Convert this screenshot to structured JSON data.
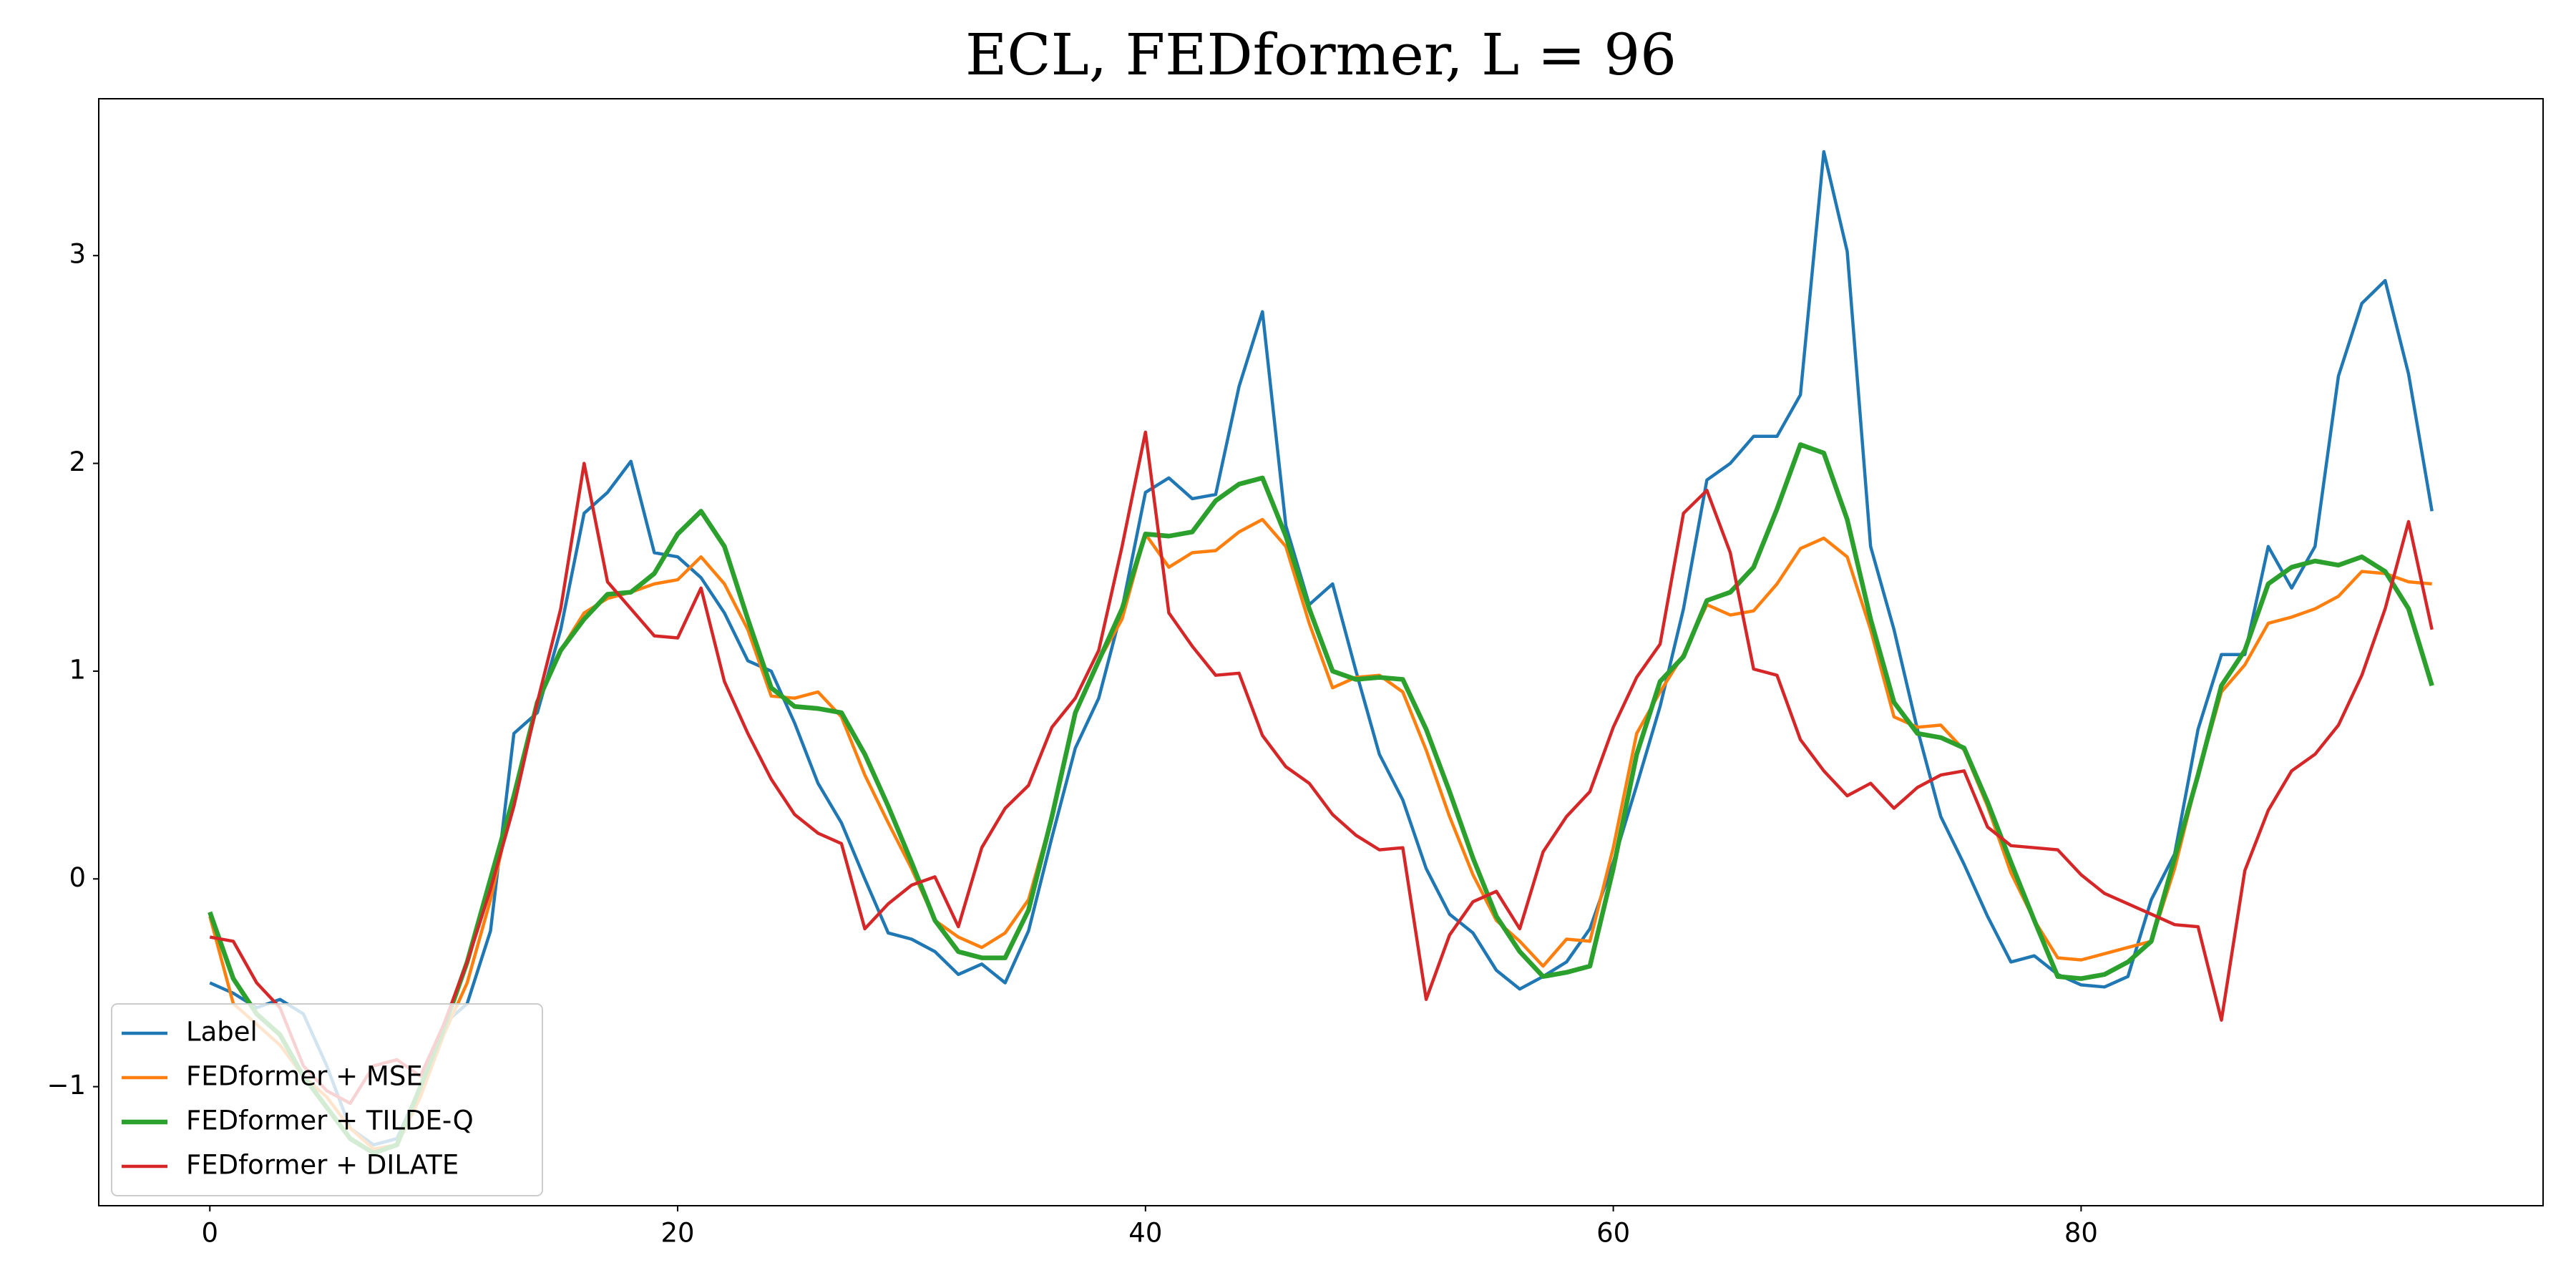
{
  "chart_data": {
    "type": "line",
    "title": "ECL, FEDformer, L = 96",
    "x": [
      0,
      1,
      2,
      3,
      4,
      5,
      6,
      7,
      8,
      9,
      10,
      11,
      12,
      13,
      14,
      15,
      16,
      17,
      18,
      19,
      20,
      21,
      22,
      23,
      24,
      25,
      26,
      27,
      28,
      29,
      30,
      31,
      32,
      33,
      34,
      35,
      36,
      37,
      38,
      39,
      40,
      41,
      42,
      43,
      44,
      45,
      46,
      47,
      48,
      49,
      50,
      51,
      52,
      53,
      54,
      55,
      56,
      57,
      58,
      59,
      60,
      61,
      62,
      63,
      64,
      65,
      66,
      67,
      68,
      69,
      70,
      71,
      72,
      73,
      74,
      75,
      76,
      77,
      78,
      79,
      80,
      81,
      82,
      83,
      84,
      85,
      86,
      87,
      88,
      89,
      90,
      91,
      92,
      93,
      94,
      95
    ],
    "xlim": [
      -4.75,
      99.75
    ],
    "xticks": [
      0,
      20,
      40,
      60,
      80
    ],
    "ylim": [
      -1.573,
      3.755
    ],
    "yticks": [
      {
        "value": -1,
        "label": "−1"
      },
      0,
      1,
      2,
      3
    ],
    "legend": "lower left",
    "series": [
      {
        "name": "Label",
        "color": "#1f77b4",
        "width": 1.5,
        "values": [
          -0.5,
          -0.55,
          -0.62,
          -0.58,
          -0.65,
          -0.9,
          -1.2,
          -1.28,
          -1.25,
          -1.0,
          -0.7,
          -0.6,
          -0.25,
          0.7,
          0.8,
          1.2,
          1.76,
          1.86,
          2.01,
          1.57,
          1.55,
          1.45,
          1.28,
          1.05,
          1.0,
          0.75,
          0.46,
          0.27,
          0.0,
          -0.26,
          -0.29,
          -0.35,
          -0.46,
          -0.41,
          -0.5,
          -0.25,
          0.2,
          0.63,
          0.87,
          1.3,
          1.86,
          1.93,
          1.83,
          1.85,
          2.37,
          2.73,
          1.7,
          1.32,
          1.42,
          1.0,
          0.6,
          0.38,
          0.05,
          -0.17,
          -0.26,
          -0.44,
          -0.53,
          -0.47,
          -0.4,
          -0.24,
          0.08,
          0.45,
          0.83,
          1.3,
          1.92,
          2.0,
          2.13,
          2.13,
          2.33,
          3.5,
          3.02,
          1.6,
          1.2,
          0.72,
          0.3,
          0.07,
          -0.18,
          -0.4,
          -0.37,
          -0.46,
          -0.51,
          -0.52,
          -0.47,
          -0.1,
          0.12,
          0.72,
          1.08,
          1.08,
          1.6,
          1.4,
          1.6,
          2.42,
          2.77,
          2.88,
          2.43,
          1.77
        ]
      },
      {
        "name": "FEDformer + MSE",
        "color": "#ff7f0e",
        "width": 1.5,
        "values": [
          -0.18,
          -0.6,
          -0.7,
          -0.8,
          -0.95,
          -1.05,
          -1.2,
          -1.3,
          -1.28,
          -1.05,
          -0.75,
          -0.5,
          -0.1,
          0.4,
          0.85,
          1.1,
          1.28,
          1.35,
          1.38,
          1.42,
          1.44,
          1.55,
          1.42,
          1.2,
          0.88,
          0.87,
          0.9,
          0.78,
          0.5,
          0.27,
          0.05,
          -0.2,
          -0.28,
          -0.33,
          -0.26,
          -0.1,
          0.3,
          0.8,
          1.05,
          1.25,
          1.66,
          1.5,
          1.57,
          1.58,
          1.67,
          1.73,
          1.6,
          1.23,
          0.92,
          0.97,
          0.98,
          0.9,
          0.62,
          0.3,
          0.02,
          -0.2,
          -0.3,
          -0.42,
          -0.29,
          -0.3,
          0.15,
          0.7,
          0.9,
          1.08,
          1.32,
          1.27,
          1.29,
          1.42,
          1.59,
          1.64,
          1.55,
          1.2,
          0.78,
          0.73,
          0.74,
          0.62,
          0.35,
          0.03,
          -0.2,
          -0.38,
          -0.39,
          -0.36,
          -0.33,
          -0.3,
          0.05,
          0.5,
          0.9,
          1.03,
          1.23,
          1.26,
          1.3,
          1.36,
          1.48,
          1.47,
          1.43,
          1.42
        ]
      },
      {
        "name": "FEDformer + TILDE-Q",
        "color": "#2ca02c",
        "width": 2.2,
        "values": [
          -0.16,
          -0.48,
          -0.65,
          -0.75,
          -0.95,
          -1.1,
          -1.25,
          -1.32,
          -1.28,
          -1.0,
          -0.72,
          -0.4,
          0.0,
          0.4,
          0.85,
          1.1,
          1.25,
          1.37,
          1.38,
          1.47,
          1.66,
          1.77,
          1.6,
          1.25,
          0.92,
          0.83,
          0.82,
          0.8,
          0.6,
          0.35,
          0.08,
          -0.2,
          -0.35,
          -0.38,
          -0.38,
          -0.15,
          0.3,
          0.8,
          1.05,
          1.3,
          1.66,
          1.65,
          1.67,
          1.82,
          1.9,
          1.93,
          1.65,
          1.3,
          1.0,
          0.96,
          0.97,
          0.96,
          0.72,
          0.42,
          0.1,
          -0.18,
          -0.35,
          -0.47,
          -0.45,
          -0.42,
          0.05,
          0.6,
          0.95,
          1.07,
          1.34,
          1.38,
          1.5,
          1.78,
          2.09,
          2.05,
          1.73,
          1.25,
          0.85,
          0.7,
          0.68,
          0.63,
          0.37,
          0.08,
          -0.2,
          -0.47,
          -0.48,
          -0.46,
          -0.4,
          -0.3,
          0.1,
          0.5,
          0.93,
          1.1,
          1.42,
          1.5,
          1.53,
          1.51,
          1.55,
          1.48,
          1.3,
          0.93
        ]
      },
      {
        "name": "FEDformer + DILATE",
        "color": "#d62728",
        "width": 1.5,
        "values": [
          -0.28,
          -0.3,
          -0.5,
          -0.62,
          -0.9,
          -1.02,
          -1.08,
          -0.9,
          -0.87,
          -0.95,
          -0.7,
          -0.4,
          -0.05,
          0.35,
          0.85,
          1.3,
          2.0,
          1.43,
          1.3,
          1.17,
          1.16,
          1.4,
          0.95,
          0.7,
          0.48,
          0.31,
          0.22,
          0.17,
          -0.24,
          -0.12,
          -0.03,
          0.01,
          -0.23,
          0.15,
          0.34,
          0.45,
          0.73,
          0.87,
          1.1,
          1.6,
          2.15,
          1.28,
          1.12,
          0.98,
          0.99,
          0.69,
          0.54,
          0.46,
          0.31,
          0.21,
          0.14,
          0.15,
          -0.58,
          -0.27,
          -0.11,
          -0.06,
          -0.24,
          0.13,
          0.3,
          0.42,
          0.73,
          0.97,
          1.13,
          1.76,
          1.87,
          1.57,
          1.01,
          0.98,
          0.67,
          0.52,
          0.4,
          0.46,
          0.34,
          0.44,
          0.5,
          0.52,
          0.25,
          0.16,
          0.15,
          0.14,
          0.02,
          -0.07,
          -0.12,
          -0.17,
          -0.22,
          -0.23,
          -0.68,
          0.04,
          0.33,
          0.52,
          0.6,
          0.74,
          0.98,
          1.3,
          1.72,
          1.2
        ]
      }
    ]
  }
}
